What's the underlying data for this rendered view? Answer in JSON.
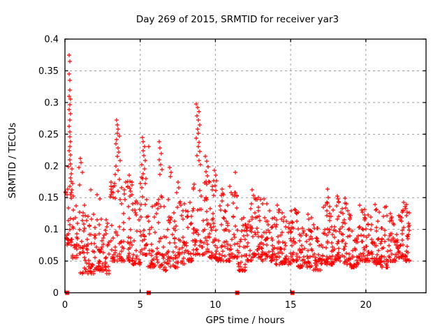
{
  "figure": {
    "background": "#ffffff",
    "plot_background": "#ffffff"
  },
  "chart_data": {
    "type": "scatter",
    "title": "Day 269 of 2015, SRMTID for receiver yar3",
    "xlabel": "GPS time / hours",
    "ylabel": "SRMTID / TECUs",
    "xlim": [
      0,
      24
    ],
    "ylim": [
      0,
      0.4
    ],
    "xticks": [
      0,
      5,
      10,
      15,
      20
    ],
    "xtick_labels": [
      "0",
      "5",
      "10",
      "15",
      "20"
    ],
    "yticks": [
      0,
      0.05,
      0.1,
      0.15,
      0.2,
      0.25,
      0.3,
      0.35,
      0.4
    ],
    "ytick_labels": [
      "0",
      "0.05",
      "0.1",
      "0.15",
      "0.2",
      "0.25",
      "0.3",
      "0.35",
      "0.4"
    ],
    "grid": true,
    "grid_color": "#9e9e9e",
    "border_color": "#000000",
    "marker": {
      "glyph": "plus",
      "color": "#ff0000",
      "size": 7
    },
    "gap_markers": {
      "glyph": "filled-square",
      "color": "#ff0000",
      "size": 6,
      "y": 0,
      "x": [
        0.15,
        5.57,
        11.45,
        15.12
      ]
    },
    "data_x_extent": [
      0.05,
      22.9
    ],
    "spike_points": [
      [
        0.3,
        0.375
      ],
      [
        0.32,
        0.365
      ],
      [
        0.3,
        0.345
      ],
      [
        0.33,
        0.335
      ],
      [
        0.31,
        0.32
      ],
      [
        0.29,
        0.31
      ],
      [
        0.35,
        0.305
      ],
      [
        0.33,
        0.297
      ],
      [
        0.3,
        0.289
      ],
      [
        0.36,
        0.282
      ],
      [
        0.32,
        0.272
      ],
      [
        0.28,
        0.262
      ],
      [
        0.34,
        0.254
      ],
      [
        0.31,
        0.246
      ],
      [
        0.37,
        0.238
      ],
      [
        0.33,
        0.23
      ],
      [
        0.29,
        0.224
      ],
      [
        0.35,
        0.217
      ],
      [
        0.31,
        0.21
      ],
      [
        0.38,
        0.203
      ],
      [
        0.45,
        0.195
      ],
      [
        0.4,
        0.188
      ],
      [
        0.36,
        0.181
      ],
      [
        0.42,
        0.175
      ],
      [
        0.34,
        0.168
      ],
      [
        0.47,
        0.162
      ],
      [
        0.39,
        0.155
      ],
      [
        0.44,
        0.149
      ],
      [
        1.02,
        0.212
      ],
      [
        1.08,
        0.205
      ],
      [
        0.95,
        0.197
      ],
      [
        1.15,
        0.19
      ],
      [
        1.7,
        0.162
      ],
      [
        2.15,
        0.155
      ],
      [
        2.3,
        0.148
      ],
      [
        3.05,
        0.168
      ],
      [
        3.42,
        0.272
      ],
      [
        3.48,
        0.265
      ],
      [
        3.55,
        0.258
      ],
      [
        3.5,
        0.251
      ],
      [
        3.6,
        0.247
      ],
      [
        3.45,
        0.241
      ],
      [
        3.38,
        0.235
      ],
      [
        3.52,
        0.228
      ],
      [
        3.58,
        0.222
      ],
      [
        3.47,
        0.215
      ],
      [
        3.65,
        0.208
      ],
      [
        3.4,
        0.2
      ],
      [
        3.55,
        0.193
      ],
      [
        3.35,
        0.186
      ],
      [
        3.62,
        0.179
      ],
      [
        3.3,
        0.172
      ],
      [
        4.25,
        0.185
      ],
      [
        4.32,
        0.176
      ],
      [
        4.2,
        0.168
      ],
      [
        4.38,
        0.16
      ],
      [
        4.3,
        0.152
      ],
      [
        5.15,
        0.245
      ],
      [
        5.22,
        0.238
      ],
      [
        5.3,
        0.231
      ],
      [
        5.18,
        0.224
      ],
      [
        5.25,
        0.216
      ],
      [
        5.35,
        0.209
      ],
      [
        5.12,
        0.202
      ],
      [
        5.28,
        0.195
      ],
      [
        5.2,
        0.188
      ],
      [
        5.4,
        0.18
      ],
      [
        5.32,
        0.172
      ],
      [
        5.57,
        0.23
      ],
      [
        6.25,
        0.238
      ],
      [
        6.32,
        0.228
      ],
      [
        6.4,
        0.219
      ],
      [
        6.28,
        0.21
      ],
      [
        6.35,
        0.202
      ],
      [
        6.45,
        0.194
      ],
      [
        6.3,
        0.186
      ],
      [
        6.95,
        0.198
      ],
      [
        7.05,
        0.19
      ],
      [
        7.0,
        0.183
      ],
      [
        7.5,
        0.174
      ],
      [
        7.58,
        0.166
      ],
      [
        7.45,
        0.158
      ],
      [
        8.75,
        0.298
      ],
      [
        8.82,
        0.292
      ],
      [
        8.9,
        0.286
      ],
      [
        8.78,
        0.279
      ],
      [
        8.85,
        0.272
      ],
      [
        8.95,
        0.265
      ],
      [
        8.8,
        0.258
      ],
      [
        8.88,
        0.251
      ],
      [
        8.72,
        0.244
      ],
      [
        8.92,
        0.237
      ],
      [
        8.85,
        0.23
      ],
      [
        8.98,
        0.223
      ],
      [
        8.76,
        0.216
      ],
      [
        8.9,
        0.209
      ],
      [
        9.02,
        0.202
      ],
      [
        9.35,
        0.215
      ],
      [
        9.42,
        0.207
      ],
      [
        9.5,
        0.199
      ],
      [
        9.38,
        0.191
      ],
      [
        9.45,
        0.184
      ],
      [
        9.55,
        0.176
      ],
      [
        9.95,
        0.193
      ],
      [
        10.02,
        0.185
      ],
      [
        10.08,
        0.177
      ],
      [
        9.98,
        0.169
      ],
      [
        10.05,
        0.161
      ],
      [
        10.45,
        0.163
      ],
      [
        10.52,
        0.155
      ],
      [
        10.95,
        0.168
      ],
      [
        11.05,
        0.158
      ],
      [
        11.32,
        0.19
      ],
      [
        12.45,
        0.162
      ],
      [
        12.55,
        0.154
      ],
      [
        12.65,
        0.147
      ],
      [
        12.38,
        0.14
      ],
      [
        13.25,
        0.148
      ],
      [
        13.4,
        0.14
      ],
      [
        14.1,
        0.138
      ],
      [
        14.25,
        0.13
      ],
      [
        15.25,
        0.132
      ],
      [
        15.4,
        0.125
      ],
      [
        17.45,
        0.163
      ],
      [
        17.52,
        0.15
      ],
      [
        17.4,
        0.143
      ],
      [
        17.58,
        0.136
      ],
      [
        18.1,
        0.152
      ],
      [
        18.22,
        0.144
      ],
      [
        18.05,
        0.137
      ],
      [
        18.62,
        0.149
      ],
      [
        19.6,
        0.138
      ],
      [
        19.72,
        0.13
      ],
      [
        20.6,
        0.139
      ],
      [
        20.72,
        0.131
      ],
      [
        21.35,
        0.136
      ],
      [
        22.5,
        0.143
      ],
      [
        22.62,
        0.136
      ],
      [
        22.45,
        0.129
      ],
      [
        22.7,
        0.122
      ]
    ],
    "band_bins_format": [
      "x_start",
      "x_end",
      "n_points",
      "y_min",
      "y_max"
    ],
    "band_bins": [
      [
        0.05,
        0.5,
        26,
        0.075,
        0.2
      ],
      [
        0.5,
        1.0,
        30,
        0.055,
        0.175
      ],
      [
        1.0,
        1.5,
        32,
        0.03,
        0.155
      ],
      [
        1.5,
        2.0,
        32,
        0.03,
        0.13
      ],
      [
        2.0,
        2.5,
        30,
        0.035,
        0.12
      ],
      [
        2.5,
        3.0,
        28,
        0.03,
        0.12
      ],
      [
        3.0,
        3.5,
        30,
        0.05,
        0.185
      ],
      [
        3.5,
        4.0,
        30,
        0.05,
        0.17
      ],
      [
        4.0,
        4.5,
        30,
        0.05,
        0.18
      ],
      [
        4.5,
        5.0,
        28,
        0.045,
        0.15
      ],
      [
        5.0,
        5.5,
        30,
        0.06,
        0.195
      ],
      [
        5.5,
        6.0,
        28,
        0.04,
        0.145
      ],
      [
        6.0,
        6.5,
        28,
        0.04,
        0.155
      ],
      [
        6.5,
        7.0,
        28,
        0.035,
        0.15
      ],
      [
        7.0,
        7.5,
        28,
        0.04,
        0.135
      ],
      [
        7.5,
        8.0,
        28,
        0.045,
        0.155
      ],
      [
        8.0,
        8.5,
        30,
        0.05,
        0.16
      ],
      [
        8.5,
        9.0,
        30,
        0.06,
        0.2
      ],
      [
        9.0,
        9.5,
        30,
        0.06,
        0.195
      ],
      [
        9.5,
        10.0,
        30,
        0.055,
        0.185
      ],
      [
        10.0,
        10.5,
        30,
        0.05,
        0.165
      ],
      [
        10.5,
        11.0,
        28,
        0.05,
        0.16
      ],
      [
        11.0,
        11.5,
        30,
        0.055,
        0.165
      ],
      [
        11.5,
        12.0,
        32,
        0.035,
        0.12
      ],
      [
        12.0,
        12.5,
        32,
        0.05,
        0.14
      ],
      [
        12.5,
        13.0,
        32,
        0.055,
        0.16
      ],
      [
        13.0,
        13.5,
        32,
        0.05,
        0.15
      ],
      [
        13.5,
        14.0,
        30,
        0.05,
        0.13
      ],
      [
        14.0,
        14.5,
        32,
        0.045,
        0.135
      ],
      [
        14.5,
        15.0,
        30,
        0.045,
        0.12
      ],
      [
        15.0,
        15.5,
        30,
        0.05,
        0.135
      ],
      [
        15.5,
        16.0,
        30,
        0.04,
        0.12
      ],
      [
        16.0,
        16.5,
        30,
        0.04,
        0.125
      ],
      [
        16.5,
        17.0,
        30,
        0.035,
        0.11
      ],
      [
        17.0,
        17.5,
        32,
        0.045,
        0.145
      ],
      [
        17.5,
        18.0,
        32,
        0.045,
        0.15
      ],
      [
        18.0,
        18.5,
        32,
        0.05,
        0.155
      ],
      [
        18.5,
        19.0,
        32,
        0.045,
        0.15
      ],
      [
        19.0,
        19.5,
        30,
        0.04,
        0.12
      ],
      [
        19.5,
        20.0,
        32,
        0.05,
        0.135
      ],
      [
        20.0,
        20.5,
        32,
        0.05,
        0.125
      ],
      [
        20.5,
        21.0,
        32,
        0.045,
        0.14
      ],
      [
        21.0,
        21.5,
        30,
        0.04,
        0.135
      ],
      [
        21.5,
        22.0,
        32,
        0.05,
        0.13
      ],
      [
        22.0,
        22.5,
        34,
        0.055,
        0.135
      ],
      [
        22.5,
        22.9,
        28,
        0.05,
        0.145
      ]
    ],
    "band_skew_exponent": 2.0,
    "seed": 269
  }
}
